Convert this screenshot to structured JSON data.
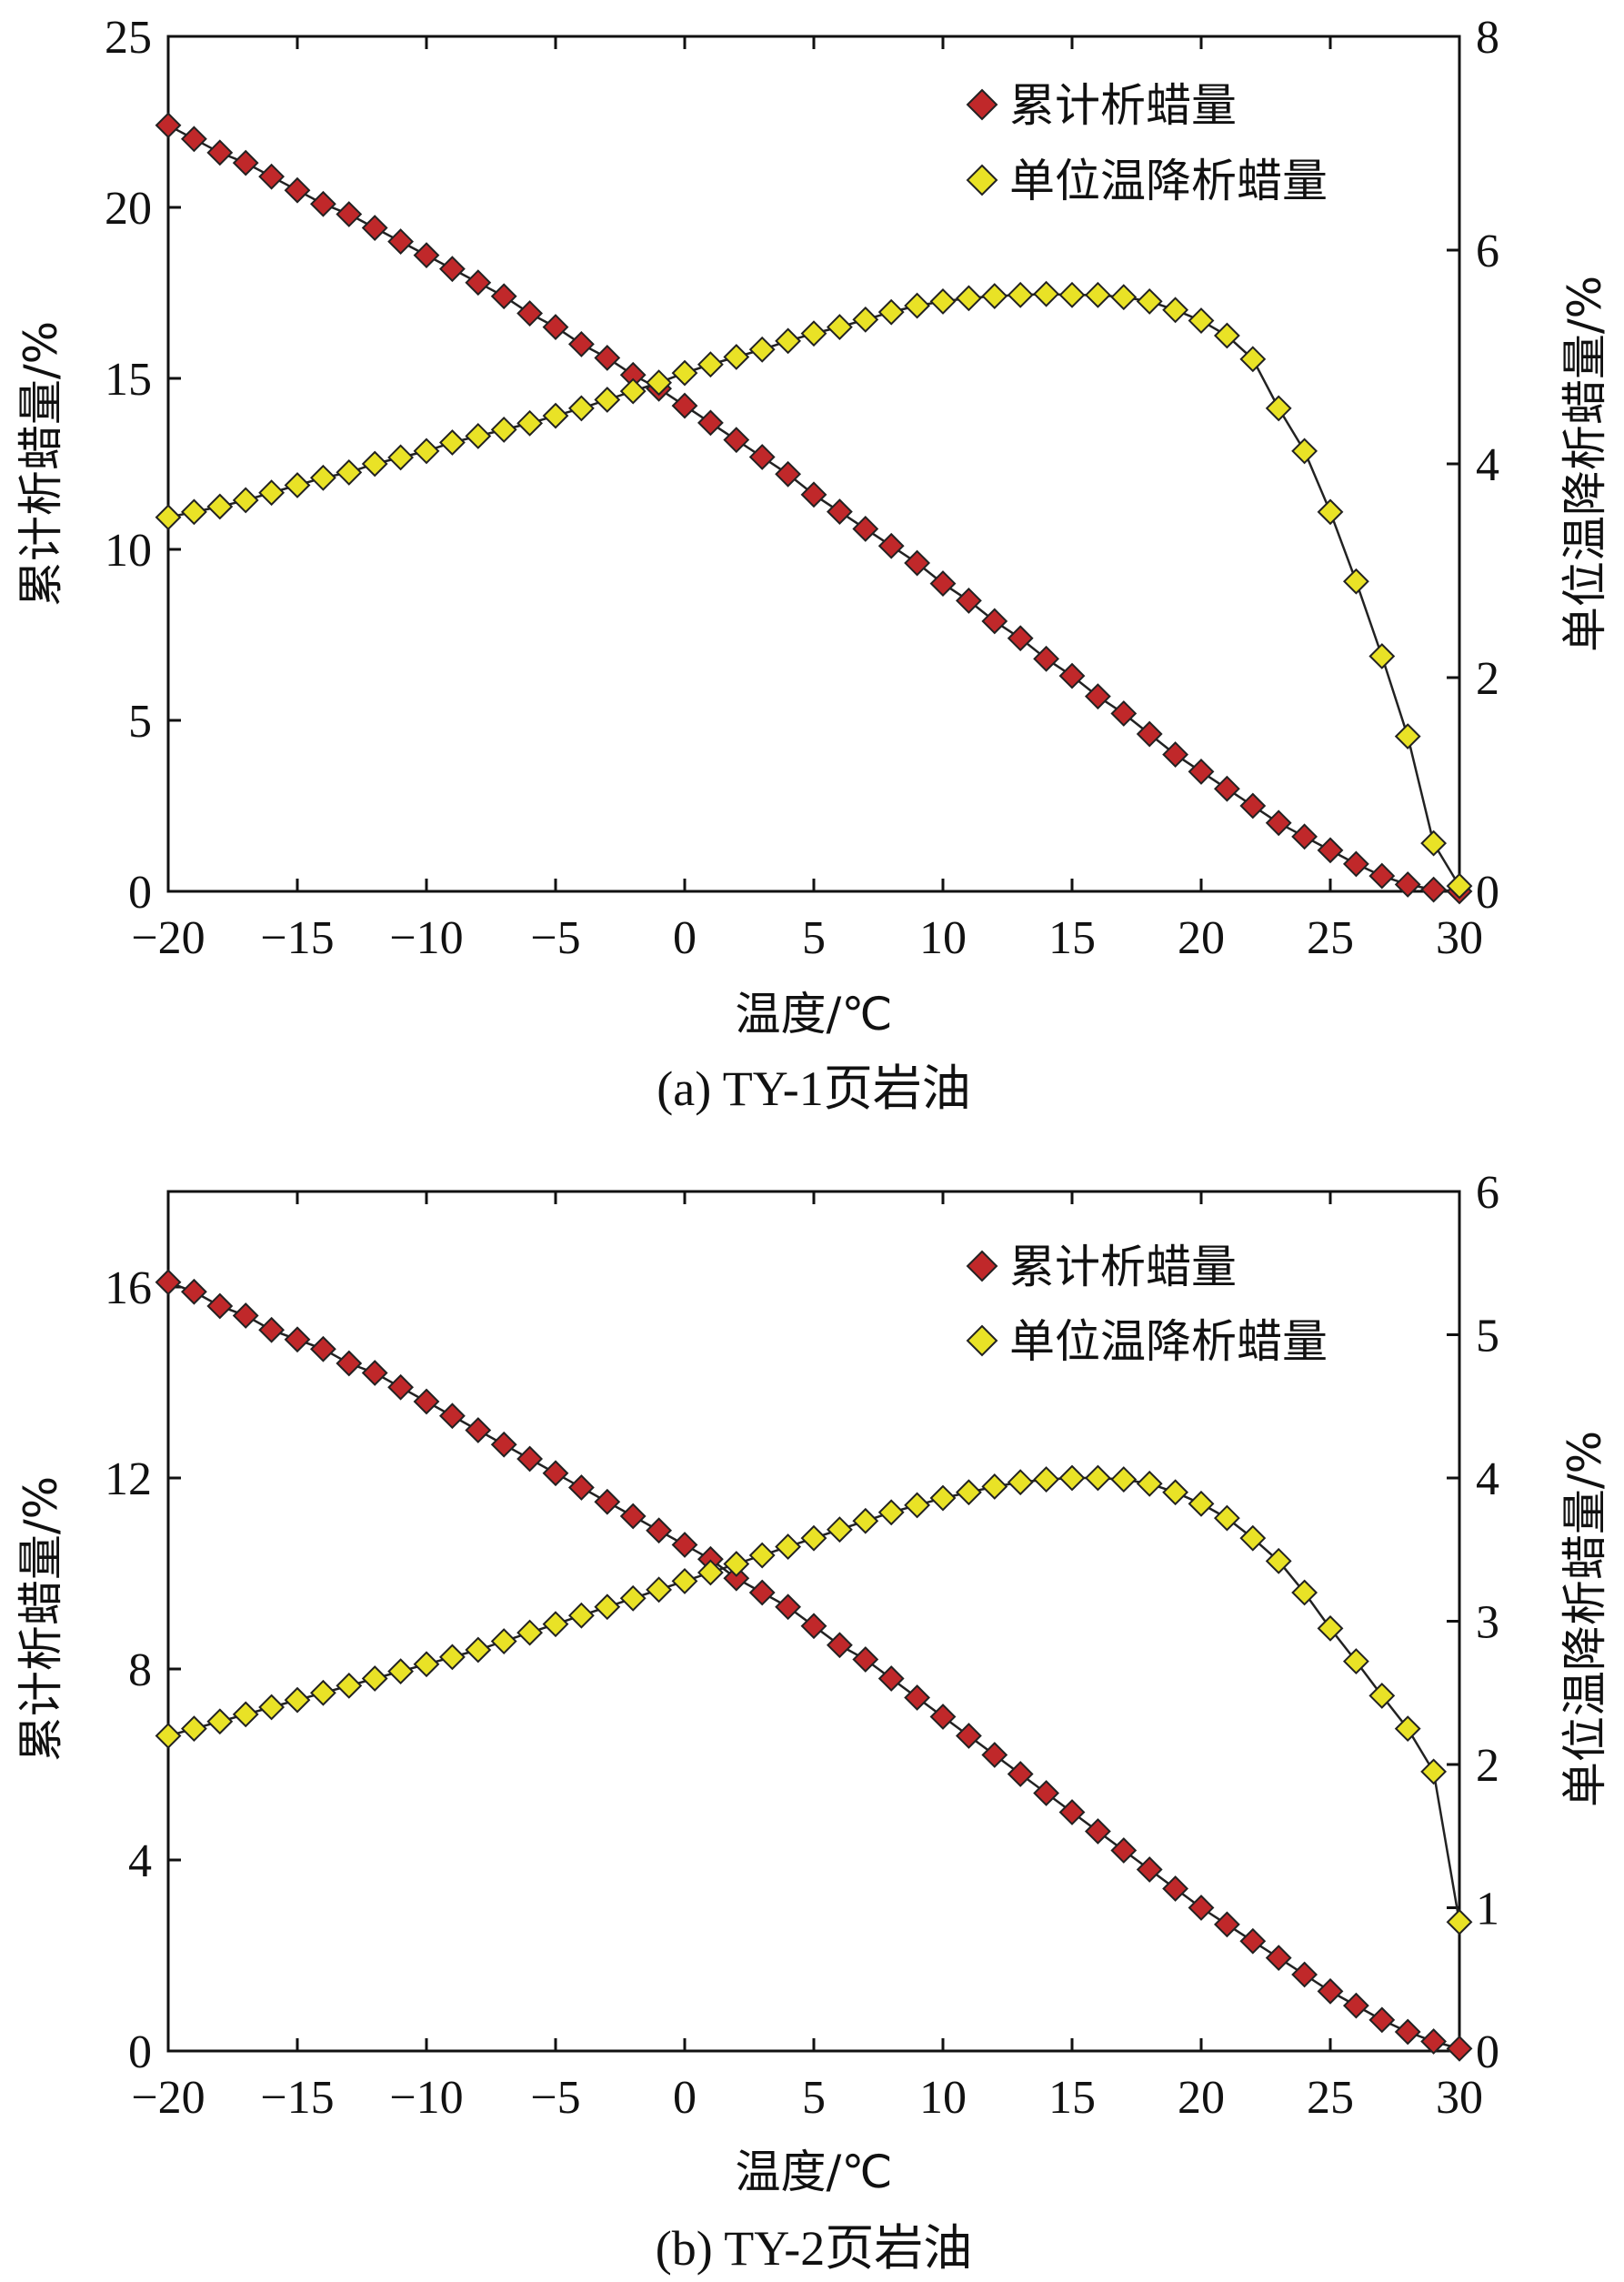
{
  "chart_data": [
    {
      "type": "line",
      "caption": "(a) TY-1页岩油",
      "xlabel": "温度/℃",
      "ylabel_left": "累计析蜡量/%",
      "ylabel_right": "单位温降析蜡量/%",
      "xlim": [
        -20,
        30
      ],
      "ylim_left": [
        0,
        25
      ],
      "ylim_right": [
        0,
        8
      ],
      "x_ticks": [
        -20,
        -15,
        -10,
        -5,
        0,
        5,
        10,
        15,
        20,
        25,
        30
      ],
      "x_tick_labels": [
        "−20",
        "−15",
        "−10",
        "−5",
        "0",
        "5",
        "10",
        "15",
        "20",
        "25",
        "30"
      ],
      "y_left_ticks": [
        0,
        5,
        10,
        15,
        20,
        25
      ],
      "y_left_tick_labels": [
        "0",
        "5",
        "10",
        "15",
        "20",
        "25"
      ],
      "y_right_ticks": [
        0,
        2,
        4,
        6,
        8
      ],
      "y_right_tick_labels": [
        "0",
        "2",
        "4",
        "6",
        "8"
      ],
      "x": [
        -20,
        -19,
        -18,
        -17,
        -16,
        -15,
        -14,
        -13,
        -12,
        -11,
        -10,
        -9,
        -8,
        -7,
        -6,
        -5,
        -4,
        -3,
        -2,
        -1,
        0,
        1,
        2,
        3,
        4,
        5,
        6,
        7,
        8,
        9,
        10,
        11,
        12,
        13,
        14,
        15,
        16,
        17,
        18,
        19,
        20,
        21,
        22,
        23,
        24,
        25,
        26,
        27,
        28,
        29,
        30
      ],
      "series": [
        {
          "name": "累计析蜡量",
          "axis": "left",
          "color": "#c0282a",
          "values": [
            22.4,
            22.0,
            21.6,
            21.3,
            20.9,
            20.5,
            20.1,
            19.8,
            19.4,
            19.0,
            18.6,
            18.2,
            17.8,
            17.4,
            16.9,
            16.5,
            16.0,
            15.6,
            15.1,
            14.7,
            14.2,
            13.7,
            13.2,
            12.7,
            12.2,
            11.6,
            11.1,
            10.6,
            10.1,
            9.6,
            9.0,
            8.5,
            7.9,
            7.4,
            6.8,
            6.3,
            5.7,
            5.2,
            4.6,
            4.0,
            3.5,
            3.0,
            2.5,
            2.0,
            1.6,
            1.2,
            0.8,
            0.45,
            0.2,
            0.05,
            0.0
          ]
        },
        {
          "name": "单位温降析蜡量",
          "axis": "right",
          "color": "#e9e226",
          "values": [
            3.5,
            3.55,
            3.6,
            3.66,
            3.73,
            3.8,
            3.87,
            3.92,
            4.0,
            4.06,
            4.12,
            4.2,
            4.26,
            4.32,
            4.38,
            4.45,
            4.52,
            4.6,
            4.68,
            4.76,
            4.85,
            4.93,
            5.0,
            5.07,
            5.15,
            5.22,
            5.28,
            5.35,
            5.42,
            5.48,
            5.52,
            5.55,
            5.57,
            5.58,
            5.59,
            5.58,
            5.58,
            5.56,
            5.52,
            5.44,
            5.34,
            5.2,
            4.98,
            4.52,
            4.12,
            3.55,
            2.9,
            2.2,
            1.45,
            0.45,
            0.05
          ]
        }
      ]
    },
    {
      "type": "line",
      "caption": "(b) TY-2页岩油",
      "xlabel": "温度/℃",
      "ylabel_left": "累计析蜡量/%",
      "ylabel_right": "单位温降析蜡量/%",
      "xlim": [
        -20,
        30
      ],
      "ylim_left": [
        0,
        18
      ],
      "ylim_right": [
        0,
        6
      ],
      "x_ticks": [
        -20,
        -15,
        -10,
        -5,
        0,
        5,
        10,
        15,
        20,
        25,
        30
      ],
      "x_tick_labels": [
        "−20",
        "−15",
        "−10",
        "−5",
        "0",
        "5",
        "10",
        "15",
        "20",
        "25",
        "30"
      ],
      "y_left_ticks": [
        0,
        4,
        8,
        12,
        16
      ],
      "y_left_tick_labels": [
        "0",
        "4",
        "8",
        "12",
        "16"
      ],
      "y_right_ticks": [
        0,
        1,
        2,
        3,
        4,
        5,
        6
      ],
      "y_right_tick_labels": [
        "0",
        "1",
        "2",
        "3",
        "4",
        "5",
        "6"
      ],
      "x": [
        -20,
        -19,
        -18,
        -17,
        -16,
        -15,
        -14,
        -13,
        -12,
        -11,
        -10,
        -9,
        -8,
        -7,
        -6,
        -5,
        -4,
        -3,
        -2,
        -1,
        0,
        1,
        2,
        3,
        4,
        5,
        6,
        7,
        8,
        9,
        10,
        11,
        12,
        13,
        14,
        15,
        16,
        17,
        18,
        19,
        20,
        21,
        22,
        23,
        24,
        25,
        26,
        27,
        28,
        29,
        30
      ],
      "series": [
        {
          "name": "累计析蜡量",
          "axis": "left",
          "color": "#c0282a",
          "values": [
            16.1,
            15.9,
            15.6,
            15.4,
            15.1,
            14.9,
            14.7,
            14.4,
            14.2,
            13.9,
            13.6,
            13.3,
            13.0,
            12.7,
            12.4,
            12.1,
            11.8,
            11.5,
            11.2,
            10.9,
            10.6,
            10.3,
            9.9,
            9.6,
            9.3,
            8.9,
            8.5,
            8.2,
            7.8,
            7.4,
            7.0,
            6.6,
            6.2,
            5.8,
            5.4,
            5.0,
            4.6,
            4.2,
            3.8,
            3.4,
            3.0,
            2.65,
            2.3,
            1.95,
            1.6,
            1.25,
            0.95,
            0.65,
            0.4,
            0.2,
            0.05
          ]
        },
        {
          "name": "单位温降析蜡量",
          "axis": "right",
          "color": "#e9e226",
          "values": [
            2.2,
            2.25,
            2.3,
            2.35,
            2.4,
            2.45,
            2.5,
            2.55,
            2.6,
            2.65,
            2.7,
            2.75,
            2.8,
            2.86,
            2.92,
            2.98,
            3.04,
            3.1,
            3.16,
            3.22,
            3.28,
            3.34,
            3.4,
            3.46,
            3.52,
            3.58,
            3.64,
            3.7,
            3.76,
            3.81,
            3.86,
            3.9,
            3.94,
            3.97,
            3.99,
            4.0,
            4.0,
            3.99,
            3.96,
            3.9,
            3.82,
            3.72,
            3.58,
            3.42,
            3.2,
            2.95,
            2.72,
            2.48,
            2.25,
            1.95,
            0.9
          ]
        }
      ]
    }
  ]
}
